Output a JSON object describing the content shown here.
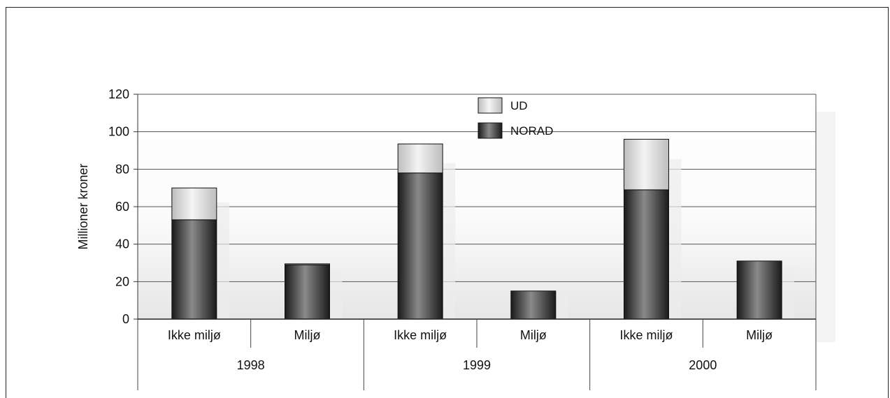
{
  "chart_data": {
    "type": "bar",
    "stacked": true,
    "title": "",
    "ylabel": "Millioner kroner",
    "xlabel": "",
    "ylim": [
      0,
      120
    ],
    "yticks": [
      0,
      20,
      40,
      60,
      80,
      100,
      120
    ],
    "grid": true,
    "legend_position": "top-center",
    "groups": [
      "1998",
      "1999",
      "2000"
    ],
    "categories": [
      "Ikke miljø",
      "Miljø",
      "Ikke miljø",
      "Miljø",
      "Ikke miljø",
      "Miljø"
    ],
    "category_group": [
      "1998",
      "1998",
      "1999",
      "1999",
      "2000",
      "2000"
    ],
    "series": [
      {
        "name": "NORAD",
        "color": "#2a2a2a",
        "values": [
          53,
          29,
          78,
          15,
          69,
          31
        ]
      },
      {
        "name": "UD",
        "color": "#cfcfcf",
        "values": [
          17,
          0.5,
          15.5,
          0,
          27,
          0
        ]
      }
    ]
  }
}
